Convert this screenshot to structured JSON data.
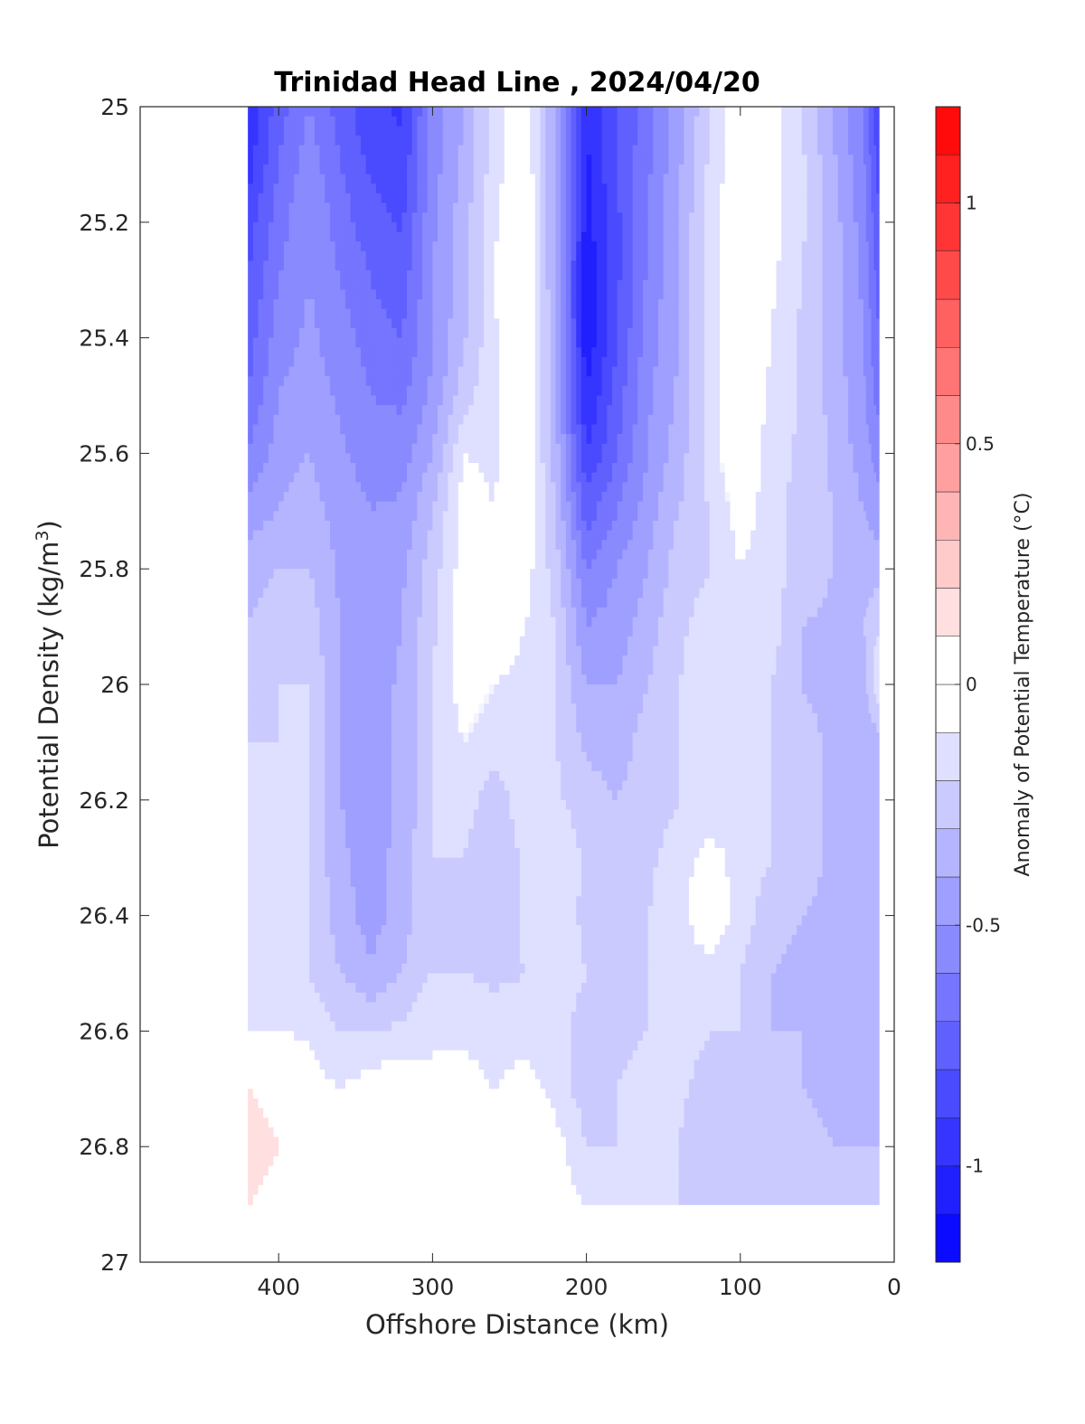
{
  "chart_data": {
    "type": "contourf",
    "title": "Trinidad Head Line , 2024/04/20",
    "xlabel": "Offshore Distance (km)",
    "ylabel_main": "Potential Density (kg/m",
    "ylabel_sup": "3",
    "ylabel_close": ")",
    "x_axis": {
      "reversed": true,
      "range": [
        490,
        0
      ],
      "ticks": [
        400,
        300,
        200,
        100,
        0
      ],
      "tick_labels": [
        "400",
        "300",
        "200",
        "100",
        "0"
      ]
    },
    "y_axis": {
      "reversed": true,
      "range": [
        25,
        27
      ],
      "ticks": [
        25,
        25.2,
        25.4,
        25.6,
        25.8,
        26,
        26.2,
        26.4,
        26.6,
        26.8,
        27
      ],
      "tick_labels": [
        "25",
        "25.2",
        "25.4",
        "25.6",
        "25.8",
        "26",
        "26.2",
        "26.4",
        "26.6",
        "26.8",
        "27"
      ]
    },
    "colorbar": {
      "label": "Anomaly of Potential Temperature (°C)",
      "range": [
        -1.2,
        1.2
      ],
      "ticks": [
        1,
        0.5,
        0,
        -0.5,
        -1
      ],
      "tick_labels": [
        "1",
        "0.5",
        "0",
        "-0.5",
        "-1"
      ],
      "level_step": 0.1,
      "negative_color": "#0000ff",
      "positive_color": "#ff0000",
      "zero_color": "#ffffff"
    },
    "data_extent": {
      "x": [
        10,
        420
      ],
      "y": [
        25,
        26.9
      ]
    },
    "x": [
      420,
      400,
      380,
      360,
      340,
      320,
      300,
      280,
      260,
      240,
      220,
      200,
      180,
      160,
      140,
      120,
      100,
      80,
      60,
      40,
      20,
      10
    ],
    "y": [
      25.0,
      25.1,
      25.2,
      25.3,
      25.4,
      25.5,
      25.6,
      25.7,
      25.8,
      25.9,
      26.0,
      26.1,
      26.2,
      26.3,
      26.4,
      26.5,
      26.6,
      26.7,
      26.8,
      26.9
    ],
    "z": [
      [
        -1.0,
        -0.75,
        -0.6,
        -0.75,
        -0.88,
        -0.92,
        -0.55,
        -0.4,
        -0.15,
        0.0,
        -0.4,
        -1.0,
        -0.8,
        -0.65,
        -0.45,
        -0.2,
        0.0,
        -0.05,
        -0.2,
        -0.4,
        -0.6,
        -0.9
      ],
      [
        -0.95,
        -0.7,
        -0.55,
        -0.7,
        -0.82,
        -0.88,
        -0.55,
        -0.38,
        -0.15,
        0.0,
        -0.42,
        -1.02,
        -0.8,
        -0.62,
        -0.42,
        -0.18,
        0.0,
        -0.05,
        -0.18,
        -0.38,
        -0.58,
        -0.85
      ],
      [
        -0.85,
        -0.65,
        -0.5,
        -0.65,
        -0.76,
        -0.82,
        -0.52,
        -0.35,
        -0.12,
        0.05,
        -0.42,
        -1.05,
        -0.82,
        -0.6,
        -0.4,
        -0.15,
        0.0,
        -0.05,
        -0.18,
        -0.35,
        -0.55,
        -0.8
      ],
      [
        -0.8,
        -0.6,
        -0.5,
        -0.6,
        -0.7,
        -0.76,
        -0.5,
        -0.35,
        -0.1,
        0.05,
        -0.42,
        -1.08,
        -0.82,
        -0.58,
        -0.4,
        -0.15,
        0.0,
        -0.08,
        -0.2,
        -0.35,
        -0.52,
        -0.75
      ],
      [
        -0.75,
        -0.55,
        -0.48,
        -0.55,
        -0.65,
        -0.7,
        -0.5,
        -0.32,
        -0.12,
        0.04,
        -0.4,
        -1.08,
        -0.8,
        -0.55,
        -0.4,
        -0.15,
        0.0,
        -0.1,
        -0.22,
        -0.35,
        -0.5,
        -0.7
      ],
      [
        -0.7,
        -0.5,
        -0.45,
        -0.52,
        -0.6,
        -0.62,
        -0.48,
        -0.25,
        -0.12,
        0.0,
        -0.38,
        -1.0,
        -0.75,
        -0.52,
        -0.38,
        -0.15,
        0.0,
        -0.12,
        -0.22,
        -0.33,
        -0.48,
        -0.65
      ],
      [
        -0.6,
        -0.45,
        -0.4,
        -0.48,
        -0.55,
        -0.55,
        -0.4,
        -0.1,
        -0.12,
        0.0,
        -0.35,
        -0.9,
        -0.7,
        -0.5,
        -0.35,
        -0.15,
        0.0,
        -0.15,
        -0.22,
        -0.32,
        -0.45,
        -0.55
      ],
      [
        -0.45,
        -0.4,
        -0.35,
        -0.45,
        -0.5,
        -0.48,
        -0.3,
        -0.05,
        -0.1,
        0.0,
        -0.3,
        -0.75,
        -0.6,
        -0.45,
        -0.3,
        -0.2,
        -0.05,
        -0.15,
        -0.25,
        -0.3,
        -0.4,
        -0.45
      ],
      [
        -0.35,
        -0.3,
        -0.3,
        -0.42,
        -0.48,
        -0.42,
        -0.25,
        -0.05,
        -0.08,
        -0.05,
        -0.25,
        -0.6,
        -0.5,
        -0.4,
        -0.25,
        -0.2,
        -0.1,
        -0.15,
        -0.25,
        -0.3,
        -0.35,
        -0.35
      ],
      [
        -0.3,
        -0.25,
        -0.25,
        -0.4,
        -0.46,
        -0.4,
        -0.22,
        -0.05,
        -0.05,
        -0.1,
        -0.2,
        -0.5,
        -0.45,
        -0.35,
        -0.22,
        -0.15,
        -0.12,
        -0.15,
        -0.3,
        -0.32,
        -0.3,
        -0.2
      ],
      [
        -0.22,
        -0.2,
        -0.2,
        -0.4,
        -0.46,
        -0.38,
        -0.2,
        -0.05,
        -0.1,
        -0.12,
        -0.2,
        -0.4,
        -0.4,
        -0.3,
        -0.2,
        -0.15,
        -0.15,
        -0.2,
        -0.3,
        -0.35,
        -0.35,
        -0.1
      ],
      [
        -0.2,
        -0.2,
        -0.2,
        -0.4,
        -0.45,
        -0.38,
        -0.2,
        -0.1,
        -0.15,
        -0.15,
        -0.2,
        -0.32,
        -0.35,
        -0.25,
        -0.2,
        -0.15,
        -0.15,
        -0.2,
        -0.25,
        -0.32,
        -0.35,
        -0.35
      ],
      [
        -0.2,
        -0.2,
        -0.2,
        -0.4,
        -0.45,
        -0.38,
        -0.2,
        -0.15,
        -0.25,
        -0.15,
        -0.18,
        -0.25,
        -0.3,
        -0.25,
        -0.2,
        -0.2,
        -0.15,
        -0.2,
        -0.3,
        -0.3,
        -0.35,
        -0.35
      ],
      [
        -0.15,
        -0.2,
        -0.2,
        -0.38,
        -0.45,
        -0.36,
        -0.2,
        -0.2,
        -0.28,
        -0.18,
        -0.12,
        -0.22,
        -0.25,
        -0.22,
        -0.15,
        -0.05,
        -0.15,
        -0.2,
        -0.2,
        -0.35,
        -0.35,
        -0.35
      ],
      [
        -0.2,
        -0.2,
        -0.2,
        -0.35,
        -0.45,
        -0.35,
        -0.2,
        -0.25,
        -0.28,
        -0.18,
        -0.15,
        -0.22,
        -0.25,
        -0.2,
        -0.15,
        0.0,
        -0.15,
        -0.25,
        -0.3,
        -0.35,
        -0.4,
        -0.4
      ],
      [
        -0.15,
        -0.15,
        -0.2,
        -0.3,
        -0.38,
        -0.3,
        -0.2,
        -0.2,
        -0.22,
        -0.2,
        -0.15,
        -0.2,
        -0.22,
        -0.2,
        -0.15,
        -0.15,
        -0.2,
        -0.3,
        -0.35,
        -0.35,
        -0.4,
        -0.4
      ],
      [
        -0.1,
        -0.1,
        -0.12,
        -0.2,
        -0.2,
        -0.18,
        -0.1,
        -0.12,
        -0.15,
        -0.15,
        -0.15,
        -0.25,
        -0.25,
        -0.2,
        -0.15,
        -0.2,
        -0.2,
        -0.3,
        -0.3,
        -0.35,
        -0.4,
        -0.4
      ],
      [
        0.1,
        0.05,
        -0.05,
        -0.1,
        -0.05,
        0.0,
        -0.1,
        -0.05,
        -0.1,
        -0.05,
        -0.15,
        -0.25,
        -0.2,
        -0.15,
        -0.18,
        -0.25,
        -0.3,
        -0.3,
        -0.3,
        -0.35,
        -0.35,
        -0.35
      ],
      [
        0.15,
        0.1,
        0.02,
        0.0,
        0.0,
        0.05,
        0.1,
        0.05,
        0.0,
        0.08,
        -0.05,
        -0.2,
        -0.2,
        -0.2,
        -0.2,
        -0.3,
        -0.25,
        -0.2,
        -0.25,
        -0.3,
        -0.3,
        -0.3
      ],
      [
        0.1,
        0.05,
        0.02,
        0.0,
        0.0,
        0.05,
        0.1,
        0.05,
        0.0,
        0.0,
        -0.05,
        -0.1,
        -0.15,
        -0.15,
        -0.2,
        -0.2,
        -0.2,
        -0.2,
        -0.25,
        -0.25,
        -0.25,
        -0.25
      ]
    ]
  }
}
